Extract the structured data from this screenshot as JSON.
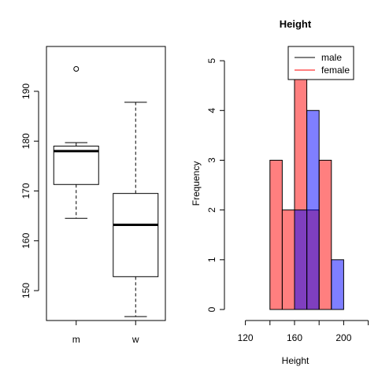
{
  "chart_data": [
    {
      "type": "box",
      "categories": [
        "m",
        "w"
      ],
      "ylim": [
        144,
        199
      ],
      "yticks": [
        150,
        160,
        170,
        180,
        190
      ],
      "boxes": [
        {
          "category": "m",
          "whisker_low": 164.5,
          "q1": 171.3,
          "median": 178.0,
          "q3": 179.0,
          "whisker_high": 179.7,
          "outliers": [
            194.5
          ]
        },
        {
          "category": "w",
          "whisker_low": 144.8,
          "q1": 152.8,
          "median": 163.2,
          "q3": 169.5,
          "whisker_high": 187.8,
          "outliers": []
        }
      ]
    },
    {
      "type": "histogram",
      "title": "Height",
      "xlabel": "Height",
      "ylabel": "Frequency",
      "xlim": [
        110,
        210
      ],
      "ylim": [
        0,
        5.35
      ],
      "xticks": [
        120,
        160,
        200
      ],
      "xtick_labels": [
        "120",
        "160",
        "200"
      ],
      "yticks": [
        0,
        1,
        2,
        3,
        4,
        5
      ],
      "legend_position": "top-right",
      "series": [
        {
          "name": "male",
          "legend_color": "#000000",
          "fill": "rgba(0,0,255,0.5)",
          "bins": [
            {
              "x0": 160,
              "x1": 170,
              "count": 2
            },
            {
              "x0": 170,
              "x1": 180,
              "count": 4
            },
            {
              "x0": 190,
              "x1": 200,
              "count": 1
            }
          ]
        },
        {
          "name": "female",
          "legend_color": "#ff0000",
          "fill": "rgba(255,0,0,0.5)",
          "bins": [
            {
              "x0": 140,
              "x1": 150,
              "count": 3
            },
            {
              "x0": 150,
              "x1": 160,
              "count": 2
            },
            {
              "x0": 160,
              "x1": 170,
              "count": 5
            },
            {
              "x0": 170,
              "x1": 180,
              "count": 2
            },
            {
              "x0": 180,
              "x1": 190,
              "count": 3
            }
          ]
        }
      ]
    }
  ]
}
